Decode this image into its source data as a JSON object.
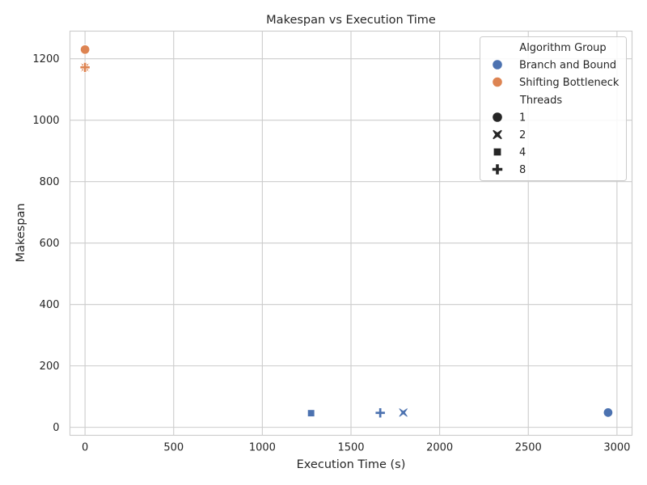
{
  "chart_data": {
    "type": "scatter",
    "title": "Makespan vs Execution Time",
    "xlabel": "Execution Time (s)",
    "ylabel": "Makespan",
    "xlim": [
      -85,
      3085
    ],
    "ylim": [
      -26,
      1290
    ],
    "xticks": [
      0,
      500,
      1000,
      1500,
      2000,
      2500,
      3000
    ],
    "yticks": [
      0,
      200,
      400,
      600,
      800,
      1000,
      1200
    ],
    "grid": true,
    "legend_position": "top-right",
    "hue_legend_title": "Algorithm Group",
    "style_legend_title": "Threads",
    "series": [
      {
        "name": "Branch and Bound",
        "color": "#4c72b0",
        "points": [
          {
            "x": 2950,
            "y": 48,
            "threads": "1"
          },
          {
            "x": 1795,
            "y": 48,
            "threads": "2"
          },
          {
            "x": 1275,
            "y": 46,
            "threads": "4"
          },
          {
            "x": 1665,
            "y": 47,
            "threads": "8"
          }
        ]
      },
      {
        "name": "Shifting Bottleneck",
        "color": "#dd8452",
        "points": [
          {
            "x": 0,
            "y": 1230,
            "threads": "1"
          },
          {
            "x": 0,
            "y": 1172,
            "threads": "2"
          },
          {
            "x": 0,
            "y": 1172,
            "threads": "4"
          },
          {
            "x": 0,
            "y": 1172,
            "threads": "8"
          }
        ]
      }
    ],
    "markers": [
      {
        "threads": "1",
        "shape": "circle"
      },
      {
        "threads": "2",
        "shape": "x"
      },
      {
        "threads": "4",
        "shape": "square"
      },
      {
        "threads": "8",
        "shape": "plus"
      }
    ],
    "legend_marker_color": "#262626"
  }
}
